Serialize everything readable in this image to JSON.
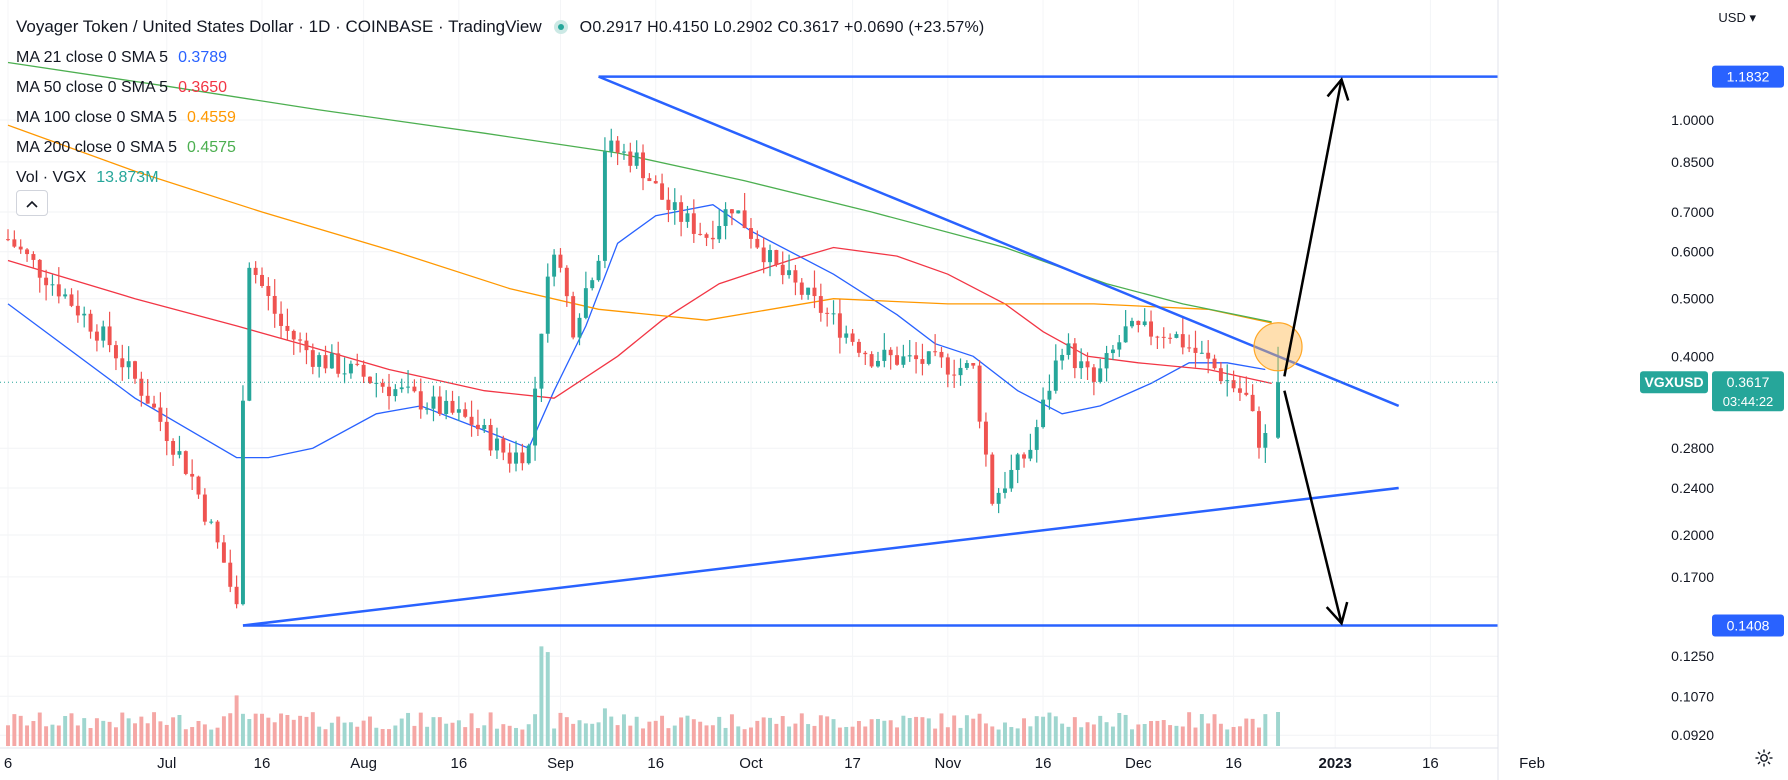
{
  "header": {
    "title": "Voyager Token / United States Dollar · 1D · COINBASE · TradingView",
    "ohlc": "O0.2917 H0.4150 L0.2902 C0.3617 +0.0690 (+23.57%)",
    "currency": "USD"
  },
  "indicators": [
    {
      "label": "MA 21 close 0 SMA 5",
      "value": "0.3789",
      "color": "#2962ff"
    },
    {
      "label": "MA 50 close 0 SMA 5",
      "value": "0.3650",
      "color": "#f23645"
    },
    {
      "label": "MA 100 close 0 SMA 5",
      "value": "0.4559",
      "color": "#ff9800"
    },
    {
      "label": "MA 200 close 0 SMA 5",
      "value": "0.4575",
      "color": "#4caf50"
    },
    {
      "label": "Vol · VGX",
      "value": "13.873M",
      "color": "#26a69a"
    }
  ],
  "collapse_icon": "chevron-up-icon",
  "settings_icon": "gear-icon",
  "colors": {
    "up": "#26a69a",
    "down": "#ef5350",
    "drawing": "#2962ff",
    "arrow": "#000000"
  },
  "chart_data": {
    "type": "candlestick",
    "title": "Voyager Token / United States Dollar",
    "symbol": "VGXUSD",
    "y_scale": "log",
    "ylim": [
      0.0874,
      1.24
    ],
    "yticks": [
      "1.0000",
      "0.8500",
      "0.7000",
      "0.6000",
      "0.5000",
      "0.4000",
      "0.2800",
      "0.2400",
      "0.2000",
      "0.1700",
      "0.1250",
      "0.1070",
      "0.0920"
    ],
    "xticks": [
      "6",
      "Jul",
      "16",
      "Aug",
      "16",
      "Sep",
      "16",
      "Oct",
      "17",
      "Nov",
      "16",
      "Dec",
      "16",
      "2023",
      "16",
      "Feb"
    ],
    "x_range": [
      "2022-06-06",
      "2023-02-18"
    ],
    "price_labels": [
      {
        "text": "1.1832",
        "value": 1.1832
      },
      {
        "text": "0.1408",
        "value": 0.1408
      }
    ],
    "last_price": {
      "symbol": "VGXUSD",
      "value": "0.3617",
      "countdown": "03:44:22"
    },
    "overlays": {
      "resistance_line": {
        "from": [
          "2022-09-07",
          1.1832
        ],
        "to": [
          "2023-01-11",
          0.33
        ]
      },
      "support_line": {
        "from": [
          "2022-07-13",
          0.1408
        ],
        "to": [
          "2023-01-11",
          0.24
        ]
      },
      "high_level": 1.1832,
      "low_level": 0.1408,
      "arrows": [
        {
          "from": [
            "2022-12-24",
            0.37
          ],
          "to": [
            "2023-01-02",
            1.17
          ]
        },
        {
          "from": [
            "2022-12-24",
            0.35
          ],
          "to": [
            "2023-01-02",
            0.142
          ]
        }
      ],
      "highlight": [
        "2022-12-23",
        0.415
      ]
    },
    "series": [
      {
        "name": "Vol · VGX",
        "type": "volume",
        "last": "13.873M"
      },
      {
        "name": "MA 21 close 0 SMA 5",
        "value": 0.3789,
        "points": [
          [
            "2022-06-06",
            0.49
          ],
          [
            "2022-06-26",
            0.34
          ],
          [
            "2022-07-12",
            0.27
          ],
          [
            "2022-07-17",
            0.27
          ],
          [
            "2022-07-24",
            0.28
          ],
          [
            "2022-08-03",
            0.32
          ],
          [
            "2022-08-10",
            0.33
          ],
          [
            "2022-08-20",
            0.3
          ],
          [
            "2022-08-27",
            0.28
          ],
          [
            "2022-08-31",
            0.35
          ],
          [
            "2022-09-05",
            0.45
          ],
          [
            "2022-09-10",
            0.62
          ],
          [
            "2022-09-16",
            0.69
          ],
          [
            "2022-09-25",
            0.72
          ],
          [
            "2022-10-01",
            0.65
          ],
          [
            "2022-10-14",
            0.55
          ],
          [
            "2022-10-24",
            0.47
          ],
          [
            "2022-10-30",
            0.42
          ],
          [
            "2022-11-05",
            0.4
          ],
          [
            "2022-11-12",
            0.35
          ],
          [
            "2022-11-19",
            0.32
          ],
          [
            "2022-11-25",
            0.33
          ],
          [
            "2022-12-03",
            0.36
          ],
          [
            "2022-12-09",
            0.39
          ],
          [
            "2022-12-15",
            0.39
          ],
          [
            "2022-12-21",
            0.38
          ]
        ]
      },
      {
        "name": "MA 50 close 0 SMA 5",
        "value": 0.365,
        "points": [
          [
            "2022-06-06",
            0.58
          ],
          [
            "2022-06-26",
            0.5
          ],
          [
            "2022-07-12",
            0.45
          ],
          [
            "2022-07-22",
            0.42
          ],
          [
            "2022-08-05",
            0.38
          ],
          [
            "2022-08-20",
            0.35
          ],
          [
            "2022-08-31",
            0.34
          ],
          [
            "2022-09-10",
            0.4
          ],
          [
            "2022-09-17",
            0.46
          ],
          [
            "2022-09-26",
            0.53
          ],
          [
            "2022-10-07",
            0.58
          ],
          [
            "2022-10-14",
            0.61
          ],
          [
            "2022-10-24",
            0.59
          ],
          [
            "2022-11-01",
            0.55
          ],
          [
            "2022-11-10",
            0.49
          ],
          [
            "2022-11-16",
            0.44
          ],
          [
            "2022-11-23",
            0.4
          ],
          [
            "2022-12-01",
            0.39
          ],
          [
            "2022-12-12",
            0.38
          ],
          [
            "2022-12-22",
            0.36
          ]
        ]
      },
      {
        "name": "MA 100 close 0 SMA 5",
        "value": 0.4559,
        "points": [
          [
            "2022-06-06",
            0.98
          ],
          [
            "2022-06-26",
            0.82
          ],
          [
            "2022-07-16",
            0.7
          ],
          [
            "2022-08-06",
            0.6
          ],
          [
            "2022-08-24",
            0.52
          ],
          [
            "2022-09-07",
            0.48
          ],
          [
            "2022-09-24",
            0.46
          ],
          [
            "2022-10-14",
            0.5
          ],
          [
            "2022-11-01",
            0.49
          ],
          [
            "2022-11-24",
            0.49
          ],
          [
            "2022-12-12",
            0.48
          ],
          [
            "2022-12-22",
            0.455
          ]
        ]
      },
      {
        "name": "MA 200 close 0 SMA 5",
        "value": 0.4575,
        "points": [
          [
            "2022-06-06",
            1.25
          ],
          [
            "2022-07-01",
            1.14
          ],
          [
            "2022-07-25",
            1.04
          ],
          [
            "2022-08-20",
            0.95
          ],
          [
            "2022-09-10",
            0.88
          ],
          [
            "2022-09-30",
            0.79
          ],
          [
            "2022-10-20",
            0.7
          ],
          [
            "2022-11-10",
            0.61
          ],
          [
            "2022-11-26",
            0.53
          ],
          [
            "2022-12-08",
            0.49
          ],
          [
            "2022-12-22",
            0.457
          ]
        ]
      }
    ],
    "candles_anchor_close": [
      [
        "2022-06-06",
        0.63
      ],
      [
        "2022-06-14",
        0.52
      ],
      [
        "2022-06-22",
        0.42
      ],
      [
        "2022-06-28",
        0.34
      ],
      [
        "2022-07-05",
        0.25
      ],
      [
        "2022-07-10",
        0.18
      ],
      [
        "2022-07-12",
        0.15
      ],
      [
        "2022-07-13",
        0.35
      ],
      [
        "2022-07-14",
        0.58
      ],
      [
        "2022-07-19",
        0.45
      ],
      [
        "2022-07-24",
        0.4
      ],
      [
        "2022-08-01",
        0.37
      ],
      [
        "2022-08-09",
        0.34
      ],
      [
        "2022-08-18",
        0.31
      ],
      [
        "2022-08-24",
        0.27
      ],
      [
        "2022-08-27",
        0.28
      ],
      [
        "2022-08-29",
        0.45
      ],
      [
        "2022-08-31",
        0.62
      ],
      [
        "2022-09-03",
        0.45
      ],
      [
        "2022-09-07",
        0.6
      ],
      [
        "2022-09-08",
        0.9
      ],
      [
        "2022-09-13",
        0.86
      ],
      [
        "2022-09-18",
        0.71
      ],
      [
        "2022-09-24",
        0.64
      ],
      [
        "2022-09-28",
        0.72
      ],
      [
        "2022-10-05",
        0.56
      ],
      [
        "2022-10-12",
        0.48
      ],
      [
        "2022-10-20",
        0.4
      ],
      [
        "2022-10-30",
        0.39
      ],
      [
        "2022-11-05",
        0.38
      ],
      [
        "2022-11-08",
        0.23
      ],
      [
        "2022-11-14",
        0.28
      ],
      [
        "2022-11-19",
        0.42
      ],
      [
        "2022-11-24",
        0.36
      ],
      [
        "2022-11-29",
        0.44
      ],
      [
        "2022-12-06",
        0.44
      ],
      [
        "2022-12-12",
        0.39
      ],
      [
        "2022-12-18",
        0.34
      ],
      [
        "2022-12-20",
        0.29
      ],
      [
        "2022-12-22",
        0.2917
      ]
    ],
    "last_candle": {
      "date": "2022-12-23",
      "open": 0.2917,
      "high": 0.415,
      "low": 0.2902,
      "close": 0.3617,
      "change": "+0.0690",
      "change_pct": "+23.57%"
    }
  }
}
